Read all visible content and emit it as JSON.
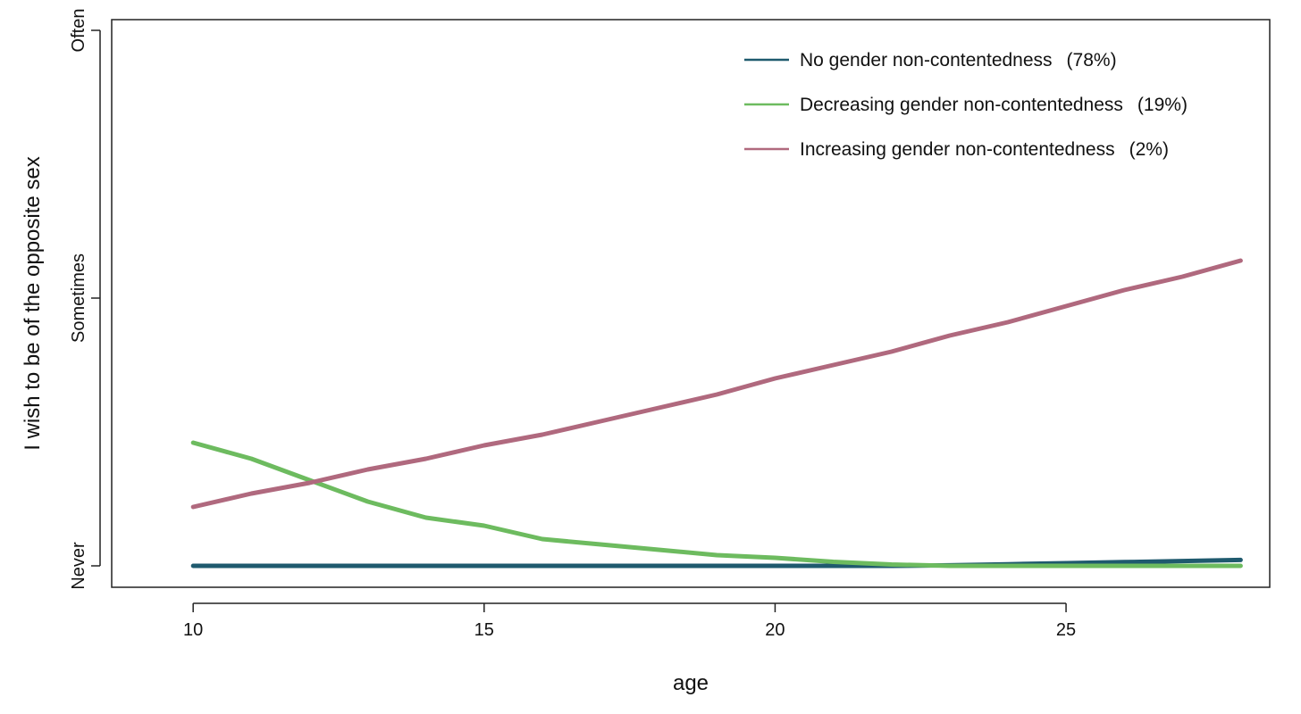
{
  "chart_data": {
    "type": "line",
    "title": "",
    "xlabel": "age",
    "ylabel": "I wish to be of the opposite sex",
    "xlim": [
      8.6,
      28.5
    ],
    "ylim": [
      -0.08,
      2.04
    ],
    "x_ticks": [
      10,
      15,
      20,
      25
    ],
    "x_tick_labels": [
      "10",
      "15",
      "20",
      "25"
    ],
    "y_ticks": [
      0,
      1,
      2
    ],
    "y_tick_labels": [
      "Never",
      "Sometimes",
      "Often"
    ],
    "grid": false,
    "legend_position": "top-right",
    "x": [
      10,
      11,
      12,
      13,
      14,
      15,
      16,
      17,
      18,
      19,
      20,
      21,
      22,
      23,
      24,
      25,
      26,
      27,
      28
    ],
    "series": [
      {
        "name": "No gender non-contentedness",
        "share": "(78%)",
        "color": "#1f5a6e",
        "values": [
          0,
          0,
          0,
          0,
          0,
          0,
          0,
          0,
          0,
          0,
          0,
          0,
          0,
          0.002,
          0.006,
          0.01,
          0.014,
          0.018,
          0.022
        ]
      },
      {
        "name": "Decreasing gender non-contentedness",
        "share": "(19%)",
        "color": "#6dbb5f",
        "values": [
          0.46,
          0.4,
          0.32,
          0.24,
          0.18,
          0.15,
          0.1,
          0.08,
          0.06,
          0.04,
          0.03,
          0.015,
          0.005,
          0,
          0,
          0,
          0,
          0,
          0
        ]
      },
      {
        "name": "Increasing gender non-contentedness",
        "share": "(2%)",
        "color": "#b0697e",
        "values": [
          0.22,
          0.27,
          0.31,
          0.36,
          0.4,
          0.45,
          0.49,
          0.54,
          0.59,
          0.64,
          0.7,
          0.75,
          0.8,
          0.86,
          0.91,
          0.97,
          1.03,
          1.08,
          1.14
        ]
      }
    ]
  }
}
